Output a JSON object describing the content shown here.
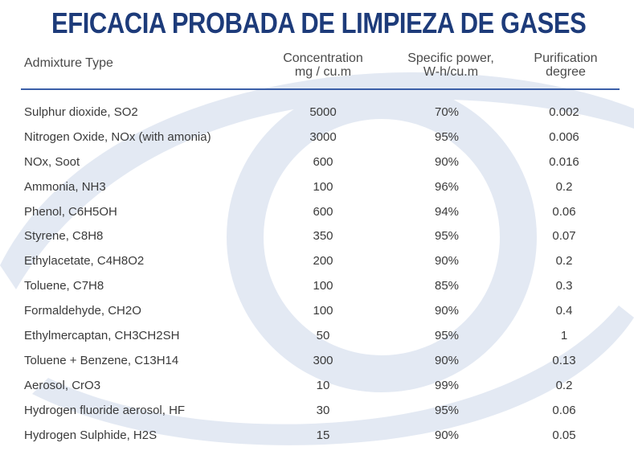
{
  "title": "EFICACIA PROBADA DE LIMPIEZA DE GASES",
  "headers": {
    "type": "Admixture Type",
    "concentration_line1": "Concentration",
    "concentration_line2": "mg / cu.m",
    "power_line1": "Specific power,",
    "power_line2": "W-h/cu.m",
    "purification_line1": "Purification",
    "purification_line2": "degree"
  },
  "colors": {
    "title": "#1d3b7a",
    "rule": "#3b5fa8",
    "watermark": "#e3e9f3"
  },
  "rows": [
    {
      "type": "Sulphur dioxide, SO2",
      "concentration": "5000",
      "power": "70%",
      "purification": "0.002"
    },
    {
      "type": "Nitrogen Oxide, NOx (with amonia)",
      "concentration": "3000",
      "power": "95%",
      "purification": "0.006"
    },
    {
      "type": "NOx, Soot",
      "concentration": "600",
      "power": "90%",
      "purification": "0.016"
    },
    {
      "type": "Ammonia, NH3",
      "concentration": "100",
      "power": "96%",
      "purification": "0.2"
    },
    {
      "type": "Phenol, C6H5OH",
      "concentration": "600",
      "power": "94%",
      "purification": "0.06"
    },
    {
      "type": "Styrene, C8H8",
      "concentration": "350",
      "power": "95%",
      "purification": "0.07"
    },
    {
      "type": "Ethylacetate, C4H8O2",
      "concentration": "200",
      "power": "90%",
      "purification": "0.2"
    },
    {
      "type": "Toluene, C7H8",
      "concentration": "100",
      "power": "85%",
      "purification": "0.3"
    },
    {
      "type": "Formaldehyde, CH2O",
      "concentration": "100",
      "power": "90%",
      "purification": "0.4"
    },
    {
      "type": "Ethylmercaptan, CH3CH2SH",
      "concentration": "50",
      "power": "95%",
      "purification": "1"
    },
    {
      "type": "Toluene + Benzene, C13H14",
      "concentration": "300",
      "power": "90%",
      "purification": "0.13"
    },
    {
      "type": "Aerosol, CrO3",
      "concentration": "10",
      "power": "99%",
      "purification": "0.2"
    },
    {
      "type": "Hydrogen fluoride aerosol, HF",
      "concentration": "30",
      "power": "95%",
      "purification": "0.06"
    },
    {
      "type": "Hydrogen Sulphide, H2S",
      "concentration": "15",
      "power": "90%",
      "purification": "0.05"
    }
  ]
}
